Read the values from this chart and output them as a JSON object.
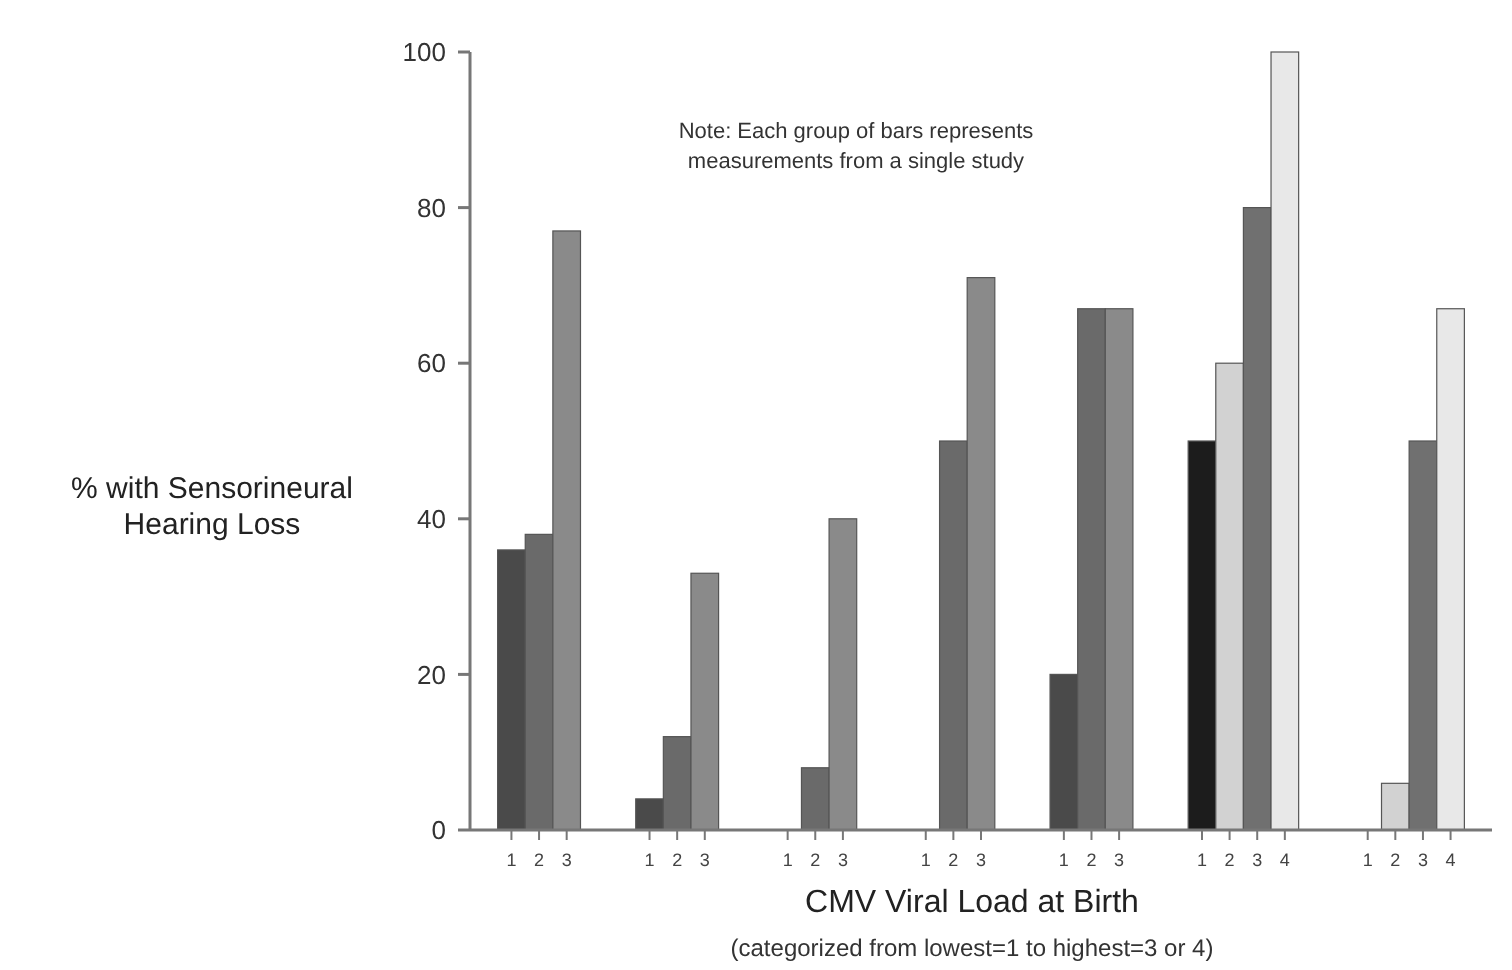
{
  "chart_data": {
    "type": "bar",
    "xlabel": "CMV Viral Load at Birth",
    "ylabel": "% with Sensorineural\nHearing Loss",
    "annotations": [
      "Note: Each group of bars represents\nmeasurements from a single study",
      "(categorized from lowest=1 to highest=3 or 4)"
    ],
    "categories": [
      "1",
      "2",
      "3",
      null,
      null,
      "1",
      "2",
      "3",
      null,
      null,
      "1",
      "2",
      "3",
      null,
      null,
      "1",
      "2",
      "3",
      null,
      null,
      "1",
      "2",
      "3",
      null,
      null,
      "1",
      "2",
      "3",
      "4",
      null,
      null,
      "1",
      "2",
      "3",
      "4"
    ],
    "values": [
      36,
      38,
      77,
      null,
      null,
      4,
      12,
      33,
      null,
      null,
      0,
      8,
      40,
      null,
      null,
      0,
      50,
      71,
      null,
      null,
      20,
      67,
      67,
      null,
      null,
      50,
      60,
      80,
      100,
      null,
      null,
      0,
      6,
      50,
      67
    ],
    "colors": [
      "#4a4a4a",
      "#6a6a6a",
      "#8a8a8a",
      null,
      null,
      "#4a4a4a",
      "#6a6a6a",
      "#8a8a8a",
      null,
      null,
      "#4a4a4a",
      "#6a6a6a",
      "#8a8a8a",
      null,
      null,
      "#4a4a4a",
      "#6a6a6a",
      "#8a8a8a",
      null,
      null,
      "#4a4a4a",
      "#6a6a6a",
      "#8a8a8a",
      null,
      null,
      "#1c1c1c",
      "#d2d2d2",
      "#707070",
      "#e8e8e8",
      null,
      null,
      "#1c1c1c",
      "#d2d2d2",
      "#707070",
      "#e8e8e8"
    ],
    "ylim": [
      0,
      100
    ],
    "yticks": [
      0,
      20,
      40,
      60,
      80,
      100
    ],
    "grid": false
  }
}
